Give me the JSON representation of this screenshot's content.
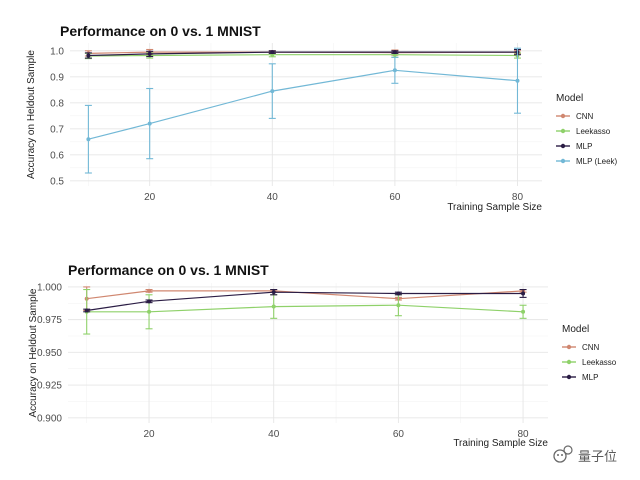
{
  "chart_data": [
    {
      "type": "line",
      "title": "Performance on 0 vs. 1 MNIST",
      "xlabel": "Training Sample Size",
      "ylabel": "Accuracy on Heldout Sample",
      "x": [
        10,
        20,
        40,
        60,
        80
      ],
      "xticks": [
        "20",
        "40",
        "60",
        "80"
      ],
      "xtick_values": [
        20,
        40,
        60,
        80
      ],
      "yticks": [
        "0.5",
        "0.6",
        "0.7",
        "0.8",
        "0.9",
        "1.0"
      ],
      "ytick_values": [
        0.5,
        0.6,
        0.7,
        0.8,
        0.9,
        1.0
      ],
      "xlim": [
        7,
        84
      ],
      "ylim": [
        0.48,
        1.03
      ],
      "grid": true,
      "legend": {
        "title": "Model",
        "position": "right"
      },
      "series": [
        {
          "name": "CNN",
          "color": "#d08770",
          "values": [
            0.99,
            0.995,
            0.995,
            0.993,
            0.995
          ],
          "err": [
            0.01,
            0.01,
            0.005,
            0.01,
            0.005
          ]
        },
        {
          "name": "Leekasso",
          "color": "#8fd16a",
          "values": [
            0.98,
            0.982,
            0.985,
            0.985,
            0.982
          ],
          "err": [
            0.01,
            0.01,
            0.008,
            0.01,
            0.01
          ]
        },
        {
          "name": "MLP",
          "color": "#2b1d45",
          "values": [
            0.982,
            0.988,
            0.995,
            0.995,
            0.995
          ],
          "err": [
            0.01,
            0.01,
            0.005,
            0.005,
            0.01
          ]
        },
        {
          "name": "MLP (Leek)",
          "color": "#72b8d6",
          "values": [
            0.66,
            0.72,
            0.845,
            0.925,
            0.885
          ],
          "err": [
            0.13,
            0.135,
            0.105,
            0.05,
            0.125
          ]
        }
      ]
    },
    {
      "type": "line",
      "title": "Performance on 0 vs. 1 MNIST",
      "xlabel": "Training Sample Size",
      "ylabel": "Accuracy on Heldout Sample",
      "x": [
        10,
        20,
        40,
        60,
        80
      ],
      "xticks": [
        "20",
        "40",
        "60",
        "80"
      ],
      "xtick_values": [
        20,
        40,
        60,
        80
      ],
      "yticks": [
        "0.900",
        "0.925",
        "0.950",
        "0.975",
        "1.000"
      ],
      "ytick_values": [
        0.9,
        0.925,
        0.95,
        0.975,
        1.0
      ],
      "xlim": [
        7,
        84
      ],
      "ylim": [
        0.896,
        1.003
      ],
      "grid": true,
      "legend": {
        "title": "Model",
        "position": "right"
      },
      "series": [
        {
          "name": "CNN",
          "color": "#d08770",
          "values": [
            0.991,
            0.997,
            0.997,
            0.991,
            0.997
          ],
          "err": [
            0.009,
            0.001,
            0.001,
            0.001,
            0.001
          ]
        },
        {
          "name": "Leekasso",
          "color": "#8fd16a",
          "values": [
            0.981,
            0.981,
            0.985,
            0.986,
            0.981
          ],
          "err": [
            0.017,
            0.013,
            0.009,
            0.008,
            0.005
          ]
        },
        {
          "name": "MLP",
          "color": "#2b1d45",
          "values": [
            0.982,
            0.989,
            0.996,
            0.995,
            0.995
          ],
          "err": [
            0.001,
            0.001,
            0.002,
            0.001,
            0.003
          ]
        }
      ]
    }
  ],
  "watermark": {
    "text": "量子位"
  }
}
